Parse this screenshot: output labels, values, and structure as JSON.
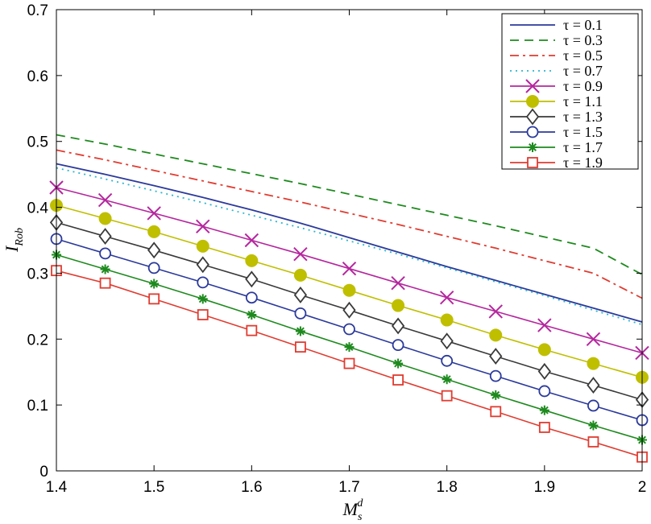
{
  "chart_data": {
    "type": "line",
    "xlabel": "M_s^d",
    "ylabel": "I_Rob",
    "xlim": [
      1.4,
      2.0
    ],
    "ylim": [
      0,
      0.7
    ],
    "xticks": [
      "1.4",
      "1.5",
      "1.6",
      "1.7",
      "1.8",
      "1.9",
      "2"
    ],
    "yticks": [
      "0",
      "0.1",
      "0.2",
      "0.3",
      "0.4",
      "0.5",
      "0.6",
      "0.7"
    ],
    "grid": false,
    "legend_position": "top-right",
    "x": [
      1.4,
      1.45,
      1.5,
      1.55,
      1.6,
      1.65,
      1.7,
      1.75,
      1.8,
      1.85,
      1.9,
      1.95,
      2.0
    ],
    "series": [
      {
        "name": "τ = 0.1",
        "color": "#2b3a9b",
        "style": "solid",
        "marker": "none",
        "values": [
          0.466,
          0.45,
          0.433,
          0.415,
          0.396,
          0.376,
          0.354,
          0.332,
          0.31,
          0.289,
          0.268,
          0.247,
          0.226
        ]
      },
      {
        "name": "τ = 0.3",
        "color": "#1e8a1e",
        "style": "dashed",
        "marker": "none",
        "values": [
          0.51,
          0.496,
          0.481,
          0.466,
          0.451,
          0.436,
          0.42,
          0.404,
          0.388,
          0.372,
          0.355,
          0.338,
          0.298
        ]
      },
      {
        "name": "τ = 0.5",
        "color": "#e03c31",
        "style": "dashdot",
        "marker": "none",
        "values": [
          0.487,
          0.472,
          0.456,
          0.44,
          0.424,
          0.408,
          0.391,
          0.374,
          0.356,
          0.338,
          0.319,
          0.3,
          0.262
        ]
      },
      {
        "name": "τ = 0.7",
        "color": "#2cb5cf",
        "style": "dotted",
        "marker": "none",
        "values": [
          0.46,
          0.443,
          0.425,
          0.407,
          0.388,
          0.369,
          0.349,
          0.329,
          0.308,
          0.287,
          0.266,
          0.244,
          0.222
        ]
      },
      {
        "name": "τ = 0.9",
        "color": "#b5279e",
        "style": "solid",
        "marker": "x",
        "values": [
          0.43,
          0.411,
          0.391,
          0.371,
          0.35,
          0.329,
          0.307,
          0.285,
          0.263,
          0.242,
          0.221,
          0.2,
          0.179
        ]
      },
      {
        "name": "τ = 1.1",
        "color": "#bfbf00",
        "style": "solid",
        "marker": "dot",
        "values": [
          0.403,
          0.383,
          0.363,
          0.341,
          0.319,
          0.297,
          0.274,
          0.251,
          0.229,
          0.206,
          0.184,
          0.163,
          0.142
        ]
      },
      {
        "name": "τ = 1.3",
        "color": "#3a3a3a",
        "style": "solid",
        "marker": "diamond",
        "values": [
          0.377,
          0.356,
          0.335,
          0.313,
          0.291,
          0.267,
          0.244,
          0.22,
          0.197,
          0.174,
          0.151,
          0.13,
          0.108
        ]
      },
      {
        "name": "τ = 1.5",
        "color": "#2b3a9b",
        "style": "solid",
        "marker": "circle",
        "values": [
          0.352,
          0.33,
          0.308,
          0.286,
          0.263,
          0.239,
          0.215,
          0.191,
          0.167,
          0.144,
          0.121,
          0.099,
          0.077
        ]
      },
      {
        "name": "τ = 1.7",
        "color": "#1e8a1e",
        "style": "solid",
        "marker": "star",
        "values": [
          0.328,
          0.306,
          0.284,
          0.261,
          0.237,
          0.212,
          0.188,
          0.163,
          0.139,
          0.115,
          0.092,
          0.069,
          0.047
        ]
      },
      {
        "name": "τ = 1.9",
        "color": "#e03c31",
        "style": "solid",
        "marker": "square",
        "values": [
          0.304,
          0.285,
          0.261,
          0.237,
          0.213,
          0.188,
          0.163,
          0.138,
          0.114,
          0.09,
          0.066,
          0.044,
          0.021
        ]
      }
    ]
  }
}
